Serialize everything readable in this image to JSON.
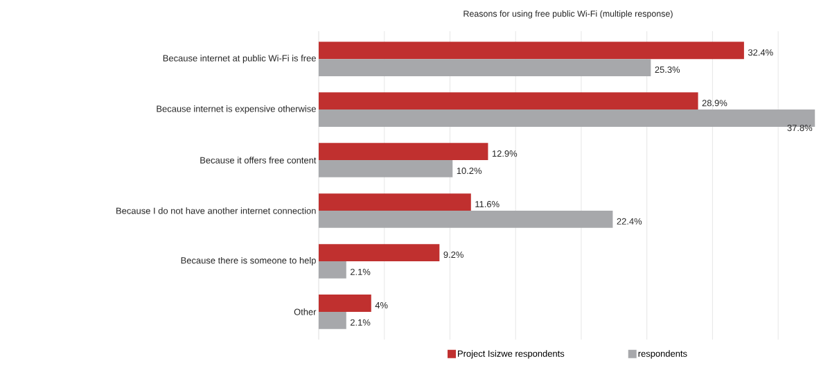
{
  "chart_data": {
    "type": "bar",
    "orientation": "horizontal",
    "title": "Reasons for using free public Wi-Fi (multiple response)",
    "categories": [
      "Because internet at public Wi-Fi is free",
      "Because internet is expensive otherwise",
      "Because it offers free content",
      "Because I do not have another internet connection",
      "Because there is someone to help",
      "Other"
    ],
    "series": [
      {
        "name": "Project Isizwe respondents",
        "color": "#c0302f",
        "values": [
          32.4,
          28.9,
          12.9,
          11.6,
          9.2,
          4
        ],
        "value_labels": [
          "32.4%",
          "28.9%",
          "12.9%",
          "11.6%",
          "9.2%",
          "4%"
        ]
      },
      {
        "name": "respondents",
        "color": "#a7a8ab",
        "values": [
          25.3,
          37.8,
          10.2,
          22.4,
          2.1,
          2.1
        ],
        "value_labels": [
          "25.3%",
          "37.8%",
          "10.2%",
          "22.4%",
          "2.1%",
          "2.1%"
        ]
      }
    ],
    "xlim": [
      0,
      38
    ],
    "xticks": [
      {
        "value": 5,
        "label": null
      },
      {
        "value": 10,
        "label": null
      },
      {
        "value": 15,
        "label": null
      },
      {
        "value": 20,
        "label": null
      },
      {
        "value": 25,
        "label": null
      },
      {
        "value": 30,
        "label": null
      },
      {
        "value": 35,
        "label": null
      }
    ],
    "grid": "x",
    "legend": "bottom"
  }
}
